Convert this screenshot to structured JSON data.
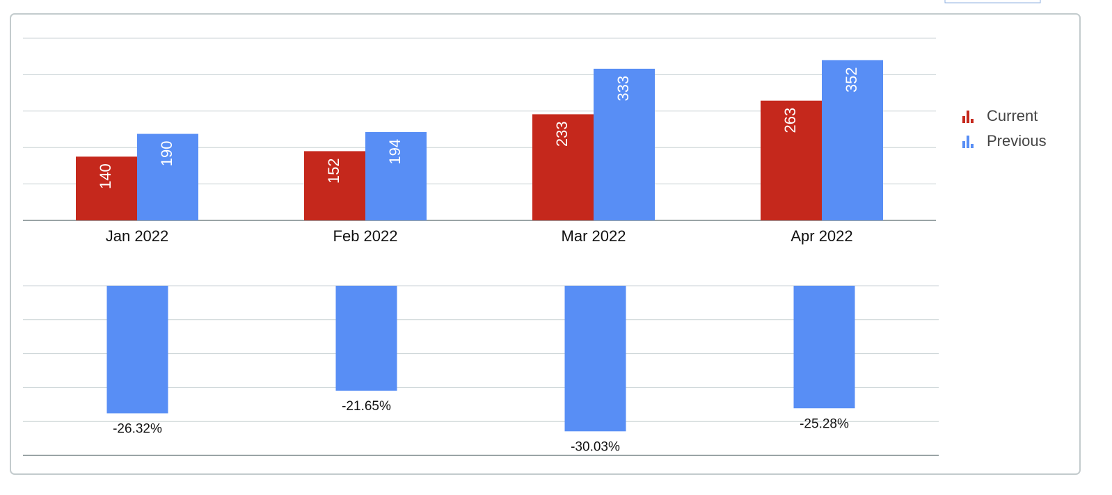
{
  "chart_data": [
    {
      "type": "bar",
      "categories": [
        "Jan 2022",
        "Feb 2022",
        "Mar 2022",
        "Apr 2022"
      ],
      "series": [
        {
          "name": "Current",
          "color": "#c5281c",
          "values": [
            140,
            152,
            233,
            263
          ]
        },
        {
          "name": "Previous",
          "color": "#588ef5",
          "values": [
            190,
            194,
            333,
            352
          ]
        }
      ],
      "ylim": [
        0,
        400
      ],
      "yticks": [
        0,
        80,
        160,
        240,
        320,
        400
      ],
      "grid": true,
      "legend": "right"
    },
    {
      "type": "bar",
      "categories": [
        null,
        null,
        null,
        null
      ],
      "values": [
        -26.32,
        -21.65,
        -30.03,
        -25.28
      ],
      "value_labels": [
        "-26.32%",
        "-21.65%",
        "-30.03%",
        "-25.28%"
      ],
      "color": "#588ef5",
      "ylim": [
        -35,
        0
      ],
      "yticks": [
        -35,
        -28,
        -21,
        -14,
        -7,
        0
      ],
      "grid": true
    }
  ]
}
